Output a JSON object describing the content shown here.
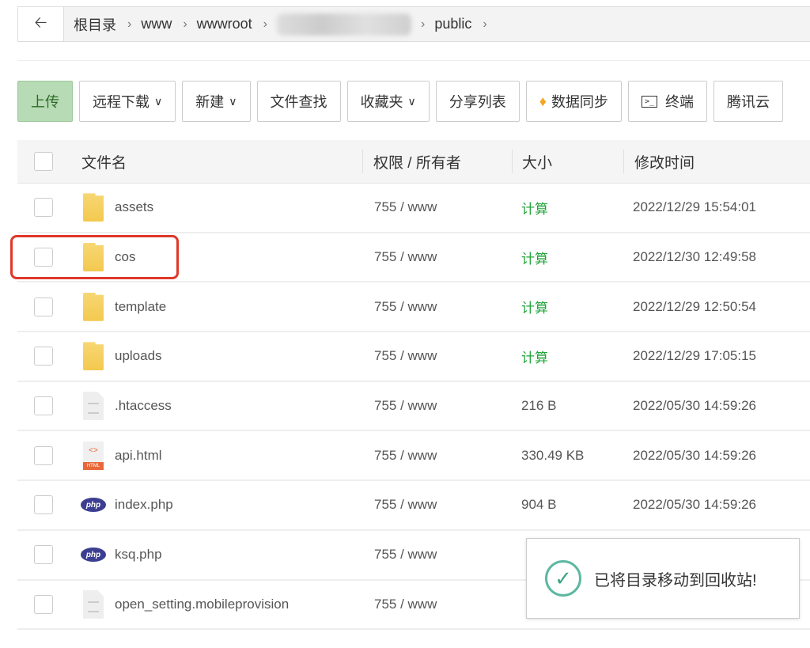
{
  "breadcrumb": {
    "items": [
      "根目录",
      "www",
      "wwwroot",
      "public"
    ]
  },
  "toolbar": {
    "buttons": [
      {
        "label": "上传"
      },
      {
        "label": "远程下载",
        "dropdown": true
      },
      {
        "label": "新建",
        "dropdown": true
      },
      {
        "label": "文件查找"
      },
      {
        "label": "收藏夹",
        "dropdown": true
      },
      {
        "label": "分享列表"
      },
      {
        "label": "数据同步",
        "icon": "diamond-icon"
      },
      {
        "label": "终端",
        "icon": "terminal-icon"
      },
      {
        "label": "腾讯云"
      }
    ]
  },
  "table": {
    "headers": {
      "name": "文件名",
      "perm": "权限 / 所有者",
      "size": "大小",
      "date": "修改时间"
    },
    "rows": [
      {
        "type": "folder",
        "name": "assets",
        "perm": "755 / www",
        "size": "计算",
        "date": "2022/12/29 15:54:01"
      },
      {
        "type": "folder",
        "name": "cos",
        "perm": "755 / www",
        "size": "计算",
        "date": "2022/12/30 12:49:58"
      },
      {
        "type": "folder",
        "name": "template",
        "perm": "755 / www",
        "size": "计算",
        "date": "2022/12/29 12:50:54"
      },
      {
        "type": "folder",
        "name": "uploads",
        "perm": "755 / www",
        "size": "计算",
        "date": "2022/12/29 17:05:15"
      },
      {
        "type": "file",
        "name": ".htaccess",
        "perm": "755 / www",
        "size": "216 B",
        "date": "2022/05/30 14:59:26"
      },
      {
        "type": "html",
        "name": "api.html",
        "perm": "755 / www",
        "size": "330.49 KB",
        "date": "2022/05/30 14:59:26"
      },
      {
        "type": "php",
        "name": "index.php",
        "perm": "755 / www",
        "size": "904 B",
        "date": "2022/05/30 14:59:26"
      },
      {
        "type": "php",
        "name": "ksq.php",
        "perm": "755 / www",
        "size": "",
        "date": ""
      },
      {
        "type": "file",
        "name": "open_setting.mobileprovision",
        "perm": "755 / www",
        "size": "",
        "date": ""
      }
    ]
  },
  "toast": {
    "message": "已将目录移动到回收站!",
    "icon": "check-circle-icon"
  },
  "colors": {
    "calc": "#20a53a",
    "primary_btn": "#b7dbb5",
    "highlight": "#e0382a"
  }
}
